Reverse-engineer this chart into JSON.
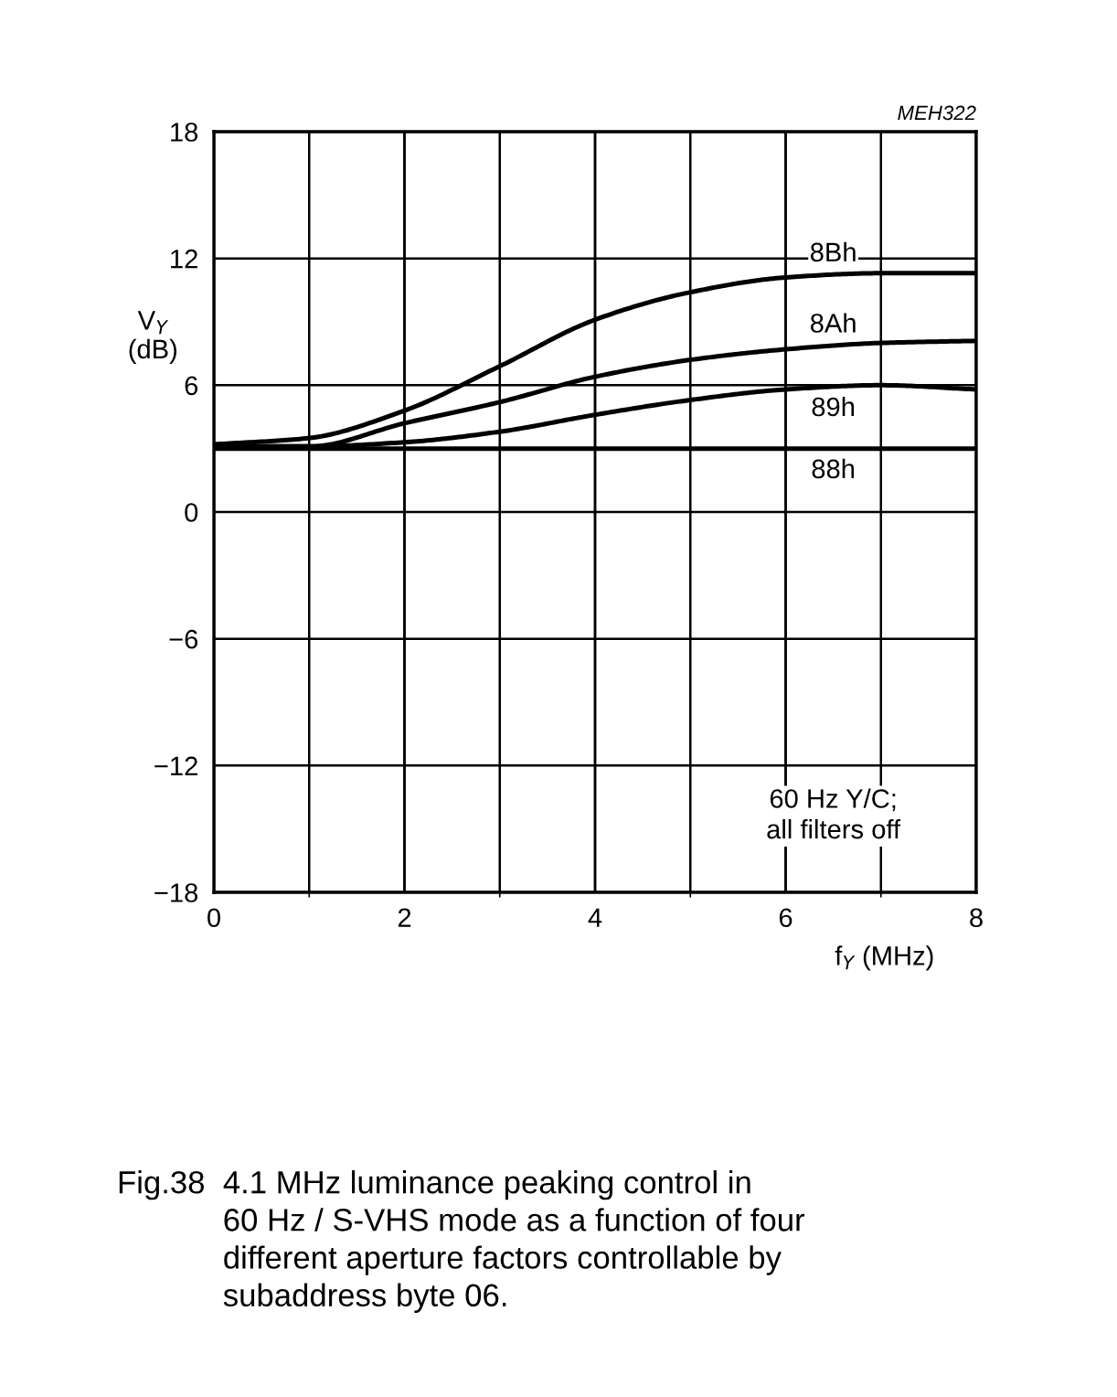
{
  "chart_data": {
    "type": "line",
    "xlabel": "f$_{Y}$ (MHz)",
    "ylabel": "V$_{Y}$\n(dB)",
    "x": [
      0,
      1,
      2,
      3,
      4,
      5,
      6,
      7,
      8
    ],
    "series": [
      {
        "name": "8Bh",
        "color": "#000000",
        "values": [
          3.2,
          3.5,
          4.8,
          6.9,
          9.1,
          10.4,
          11.1,
          11.3,
          11.3
        ]
      },
      {
        "name": "8Ah",
        "color": "#000000",
        "values": [
          3.1,
          3.1,
          4.2,
          5.2,
          6.4,
          7.2,
          7.7,
          8.0,
          8.1
        ]
      },
      {
        "name": "89h",
        "color": "#000000",
        "values": [
          3.1,
          3.1,
          3.3,
          3.8,
          4.6,
          5.3,
          5.8,
          6.0,
          5.8
        ]
      },
      {
        "name": "88h",
        "color": "#000000",
        "values": [
          3.0,
          3.0,
          3.0,
          3.0,
          3.0,
          3.0,
          3.0,
          3.0,
          3.0
        ]
      }
    ],
    "xlim": [
      0,
      8
    ],
    "xticks": [
      0,
      2,
      4,
      6,
      8
    ],
    "ylim": [
      -18,
      18
    ],
    "yticks": [
      {
        "value": -18,
        "label": "−18"
      },
      {
        "value": -12,
        "label": "−12"
      },
      {
        "value": -6,
        "label": "−6"
      },
      0,
      6,
      12,
      18
    ],
    "grid": true,
    "marker": "none",
    "line_style": "solid",
    "legend": false,
    "annotations": [
      "MEH322",
      "60 Hz Y/C;\nall filters off",
      "Fig.38  4.1 MHz luminance peaking control in\n            60 Hz / S-VHS mode as a function of four\n            different aperture factors controllable by\n            subaddress byte 06."
    ]
  }
}
